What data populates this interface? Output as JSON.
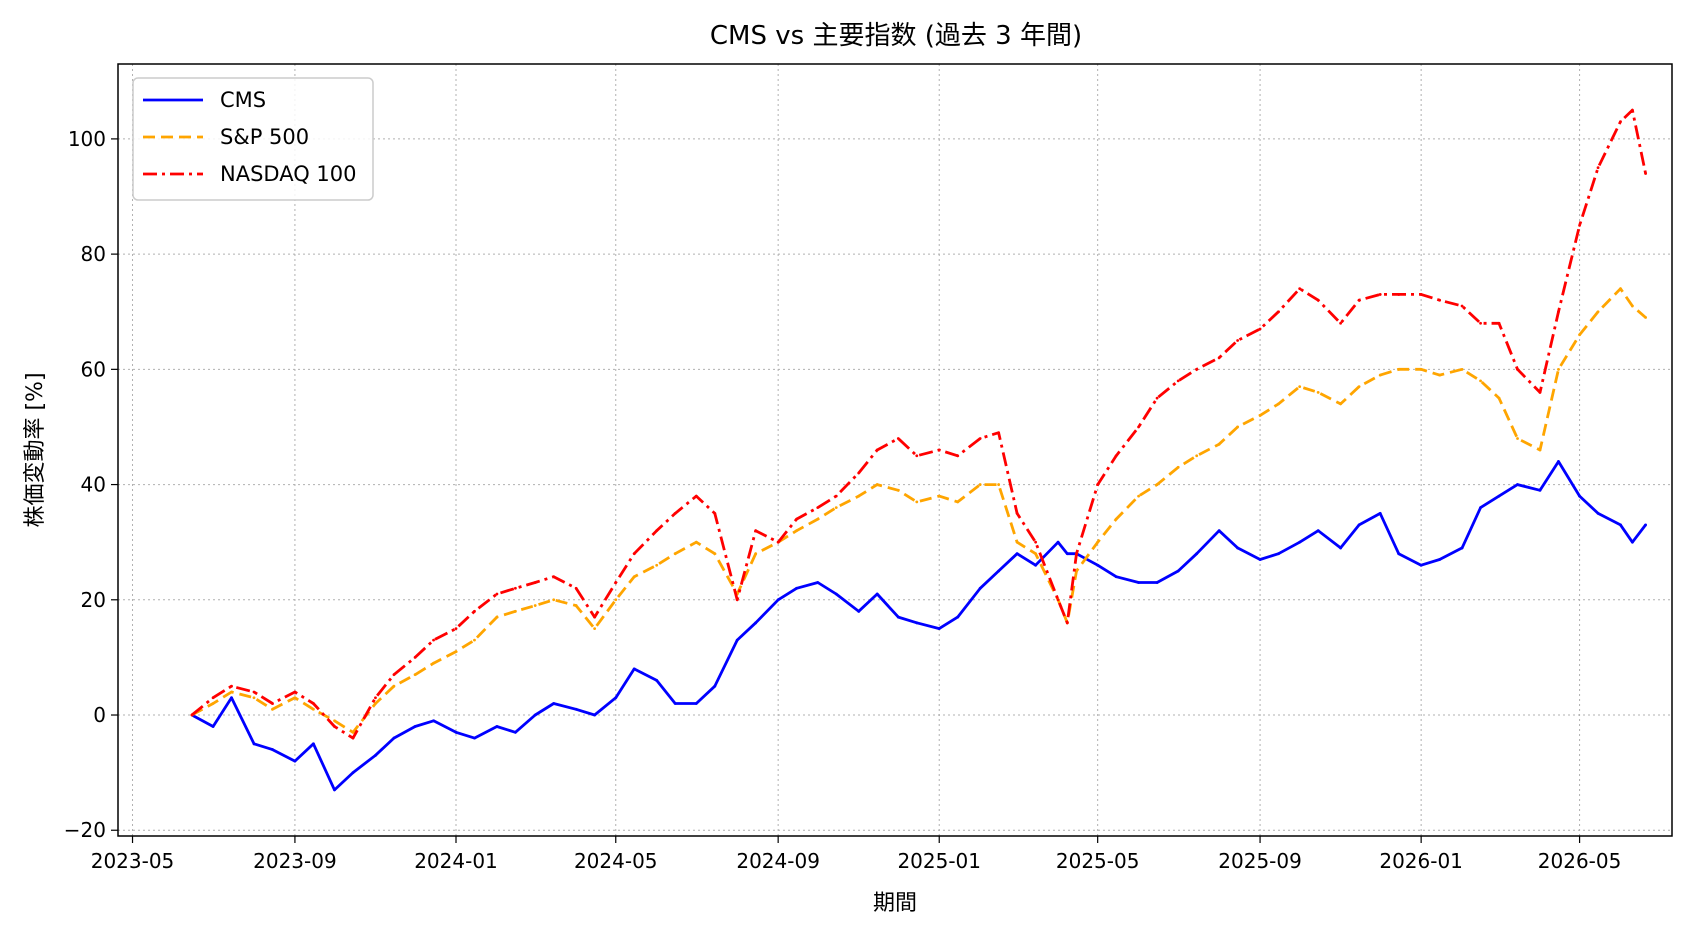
{
  "chart_data": {
    "type": "line",
    "title": "CMS vs 主要指数 (過去 3 年間)",
    "xlabel": "期間",
    "ylabel": "株価変動率 [%]",
    "x_ticks": [
      "2023-05",
      "2023-09",
      "2024-01",
      "2024-05",
      "2024-09",
      "2025-01",
      "2025-05",
      "2025-09",
      "2026-01",
      "2026-05"
    ],
    "y_ticks": [
      -20,
      0,
      20,
      40,
      60,
      80,
      100
    ],
    "xlim": [
      "2023-04-20",
      "2026-07-10"
    ],
    "ylim": [
      -21,
      113
    ],
    "grid": true,
    "legend_position": "upper-left",
    "x": [
      "2023-06-15",
      "2023-07-01",
      "2023-07-15",
      "2023-08-01",
      "2023-08-15",
      "2023-09-01",
      "2023-09-15",
      "2023-10-01",
      "2023-10-15",
      "2023-11-01",
      "2023-11-15",
      "2023-12-01",
      "2023-12-15",
      "2024-01-01",
      "2024-01-15",
      "2024-02-01",
      "2024-02-15",
      "2024-03-01",
      "2024-03-15",
      "2024-04-01",
      "2024-04-15",
      "2024-05-01",
      "2024-05-15",
      "2024-06-01",
      "2024-06-15",
      "2024-07-01",
      "2024-07-15",
      "2024-08-01",
      "2024-08-15",
      "2024-09-01",
      "2024-09-15",
      "2024-10-01",
      "2024-10-15",
      "2024-11-01",
      "2024-11-15",
      "2024-12-01",
      "2024-12-15",
      "2025-01-01",
      "2025-01-15",
      "2025-02-01",
      "2025-02-15",
      "2025-03-01",
      "2025-03-15",
      "2025-04-01",
      "2025-04-08",
      "2025-04-15",
      "2025-05-01",
      "2025-05-15",
      "2025-06-01",
      "2025-06-15",
      "2025-07-01",
      "2025-07-15",
      "2025-08-01",
      "2025-08-15",
      "2025-09-01",
      "2025-09-15",
      "2025-10-01",
      "2025-10-15",
      "2025-11-01",
      "2025-11-15",
      "2025-12-01",
      "2025-12-15",
      "2026-01-01",
      "2026-01-15",
      "2026-02-01",
      "2026-02-15",
      "2026-03-01",
      "2026-03-15",
      "2026-04-01",
      "2026-04-15",
      "2026-05-01",
      "2026-05-15",
      "2026-06-01",
      "2026-06-10",
      "2026-06-20"
    ],
    "series": [
      {
        "name": "CMS",
        "color": "#0000ff",
        "style": "solid",
        "values": [
          0,
          -2,
          3,
          -5,
          -6,
          -8,
          -5,
          -13,
          -10,
          -7,
          -4,
          -2,
          -1,
          -3,
          -4,
          -2,
          -3,
          0,
          2,
          1,
          0,
          3,
          8,
          6,
          2,
          2,
          5,
          13,
          16,
          20,
          22,
          23,
          21,
          18,
          21,
          17,
          16,
          15,
          17,
          22,
          25,
          28,
          26,
          30,
          28,
          28,
          26,
          24,
          23,
          23,
          25,
          28,
          32,
          29,
          27,
          28,
          30,
          32,
          29,
          33,
          35,
          28,
          26,
          27,
          29,
          36,
          38,
          40,
          39,
          44,
          38,
          35,
          33,
          30,
          33
        ]
      },
      {
        "name": "S&P 500",
        "color": "#ffa500",
        "style": "dashed",
        "values": [
          0,
          2,
          4,
          3,
          1,
          3,
          1,
          -1,
          -3,
          2,
          5,
          7,
          9,
          11,
          13,
          17,
          18,
          19,
          20,
          19,
          15,
          20,
          24,
          26,
          28,
          30,
          28,
          21,
          28,
          30,
          32,
          34,
          36,
          38,
          40,
          39,
          37,
          38,
          37,
          40,
          40,
          30,
          28,
          20,
          16,
          25,
          30,
          34,
          38,
          40,
          43,
          45,
          47,
          50,
          52,
          54,
          57,
          56,
          54,
          57,
          59,
          60,
          60,
          59,
          60,
          58,
          55,
          48,
          46,
          60,
          66,
          70,
          74,
          71,
          69
        ]
      },
      {
        "name": "NASDAQ 100",
        "color": "#ff0000",
        "style": "dashdot",
        "values": [
          0,
          3,
          5,
          4,
          2,
          4,
          2,
          -2,
          -4,
          3,
          7,
          10,
          13,
          15,
          18,
          21,
          22,
          23,
          24,
          22,
          17,
          23,
          28,
          32,
          35,
          38,
          35,
          20,
          32,
          30,
          34,
          36,
          38,
          42,
          46,
          48,
          45,
          46,
          45,
          48,
          49,
          35,
          30,
          20,
          16,
          28,
          40,
          45,
          50,
          55,
          58,
          60,
          62,
          65,
          67,
          70,
          74,
          72,
          68,
          72,
          73,
          73,
          73,
          72,
          71,
          68,
          68,
          60,
          56,
          70,
          85,
          95,
          103,
          105,
          94
        ]
      }
    ]
  }
}
